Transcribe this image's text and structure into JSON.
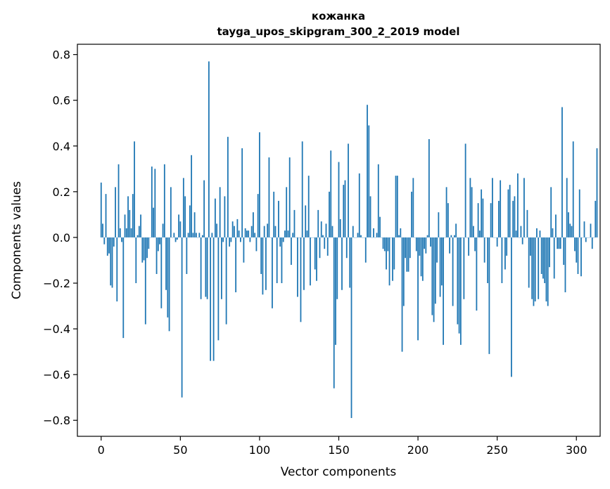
{
  "chart_data": {
    "type": "bar",
    "title": "кожанка",
    "subtitle": "tayga_upos_skipgram_300_2_2019 model",
    "xlabel": "Vector components",
    "ylabel": "Components values",
    "xlim": [
      -15,
      315
    ],
    "ylim": [
      -0.87,
      0.845
    ],
    "xticks": [
      0,
      50,
      100,
      150,
      200,
      250,
      300
    ],
    "yticks": [
      -0.8,
      -0.6,
      -0.4,
      -0.2,
      0.0,
      0.2,
      0.4,
      0.6,
      0.8
    ],
    "ytick_labels": [
      "−0.8",
      "−0.6",
      "−0.4",
      "−0.2",
      "0.0",
      "0.2",
      "0.4",
      "0.6",
      "0.8"
    ],
    "grid": false,
    "bar_color": "#1f77b4",
    "values": [
      0.24,
      0.06,
      -0.03,
      0.19,
      -0.08,
      -0.07,
      -0.21,
      -0.22,
      -0.04,
      0.22,
      -0.28,
      0.32,
      0.04,
      -0.02,
      -0.44,
      0.1,
      0.04,
      0.18,
      0.12,
      0.04,
      0.19,
      0.42,
      -0.2,
      0.01,
      0.05,
      0.1,
      -0.11,
      -0.1,
      -0.38,
      -0.09,
      -0.05,
      0.0,
      0.31,
      0.13,
      0.3,
      -0.16,
      -0.06,
      -0.03,
      -0.31,
      0.06,
      0.32,
      -0.23,
      -0.35,
      -0.41,
      0.22,
      0.0,
      0.02,
      -0.02,
      -0.01,
      0.1,
      0.07,
      -0.7,
      0.26,
      0.18,
      -0.16,
      0.02,
      0.14,
      0.36,
      0.02,
      0.11,
      0.02,
      0.0,
      0.02,
      -0.27,
      0.01,
      0.25,
      -0.26,
      -0.27,
      0.77,
      -0.54,
      0.02,
      -0.54,
      0.17,
      0.06,
      -0.45,
      0.22,
      -0.27,
      -0.02,
      0.18,
      -0.38,
      0.44,
      -0.04,
      -0.02,
      0.07,
      0.05,
      -0.24,
      0.08,
      0.03,
      -0.02,
      0.39,
      -0.11,
      0.04,
      0.03,
      0.03,
      -0.02,
      0.05,
      0.11,
      0.02,
      -0.06,
      0.19,
      0.46,
      -0.16,
      -0.25,
      0.05,
      -0.23,
      0.06,
      0.35,
      0.0,
      -0.31,
      0.2,
      0.05,
      -0.2,
      0.16,
      -0.04,
      -0.2,
      -0.02,
      0.03,
      0.22,
      0.03,
      0.35,
      -0.12,
      0.02,
      0.12,
      0.0,
      -0.26,
      0.0,
      -0.37,
      0.42,
      -0.23,
      0.14,
      0.03,
      0.27,
      -0.21,
      0.0,
      0.0,
      -0.14,
      -0.19,
      0.12,
      -0.09,
      0.07,
      0.01,
      -0.05,
      0.06,
      -0.08,
      0.2,
      0.38,
      0.05,
      -0.66,
      -0.47,
      -0.27,
      0.33,
      0.08,
      -0.23,
      0.23,
      0.25,
      -0.09,
      0.41,
      -0.22,
      -0.79,
      0.05,
      0.0,
      0.0,
      0.02,
      0.28,
      0.01,
      0.0,
      0.0,
      -0.11,
      0.58,
      0.49,
      0.18,
      0.0,
      0.04,
      0.0,
      0.02,
      0.32,
      0.09,
      0.0,
      -0.05,
      -0.06,
      -0.14,
      -0.06,
      -0.21,
      0.0,
      -0.19,
      -0.14,
      0.27,
      0.27,
      0.01,
      0.04,
      -0.5,
      -0.3,
      -0.09,
      -0.15,
      -0.15,
      -0.09,
      0.2,
      0.26,
      0.0,
      -0.06,
      -0.45,
      -0.08,
      -0.17,
      -0.19,
      -0.05,
      -0.07,
      0.01,
      0.43,
      -0.04,
      -0.34,
      -0.37,
      -0.29,
      -0.11,
      0.11,
      -0.26,
      -0.21,
      -0.47,
      0.0,
      0.22,
      0.15,
      -0.07,
      0.01,
      -0.3,
      0.01,
      0.06,
      -0.38,
      -0.42,
      -0.47,
      0.0,
      -0.27,
      0.41,
      0.0,
      -0.08,
      0.26,
      0.22,
      0.05,
      -0.06,
      -0.32,
      0.15,
      0.03,
      0.21,
      0.17,
      -0.11,
      0.0,
      -0.2,
      -0.51,
      0.15,
      0.26,
      0.0,
      0.0,
      -0.04,
      0.16,
      0.25,
      -0.2,
      0.0,
      -0.14,
      -0.08,
      0.21,
      0.23,
      -0.61,
      0.16,
      0.18,
      0.03,
      0.28,
      0.0,
      0.05,
      -0.03,
      0.26,
      0.0,
      0.12,
      -0.22,
      -0.08,
      -0.27,
      -0.3,
      -0.28,
      0.04,
      -0.27,
      0.03,
      -0.16,
      -0.18,
      -0.2,
      -0.28,
      -0.3,
      -0.13,
      0.22,
      0.04,
      -0.18,
      0.1,
      -0.05,
      -0.05,
      -0.05,
      0.57,
      -0.12,
      -0.24,
      0.26,
      0.11,
      0.06,
      0.05,
      0.42,
      -0.06,
      -0.11,
      -0.16,
      0.21,
      -0.17,
      0.0,
      0.07,
      -0.02,
      0.0,
      0.0,
      0.06,
      -0.05,
      0.0,
      0.16,
      0.39
    ]
  }
}
